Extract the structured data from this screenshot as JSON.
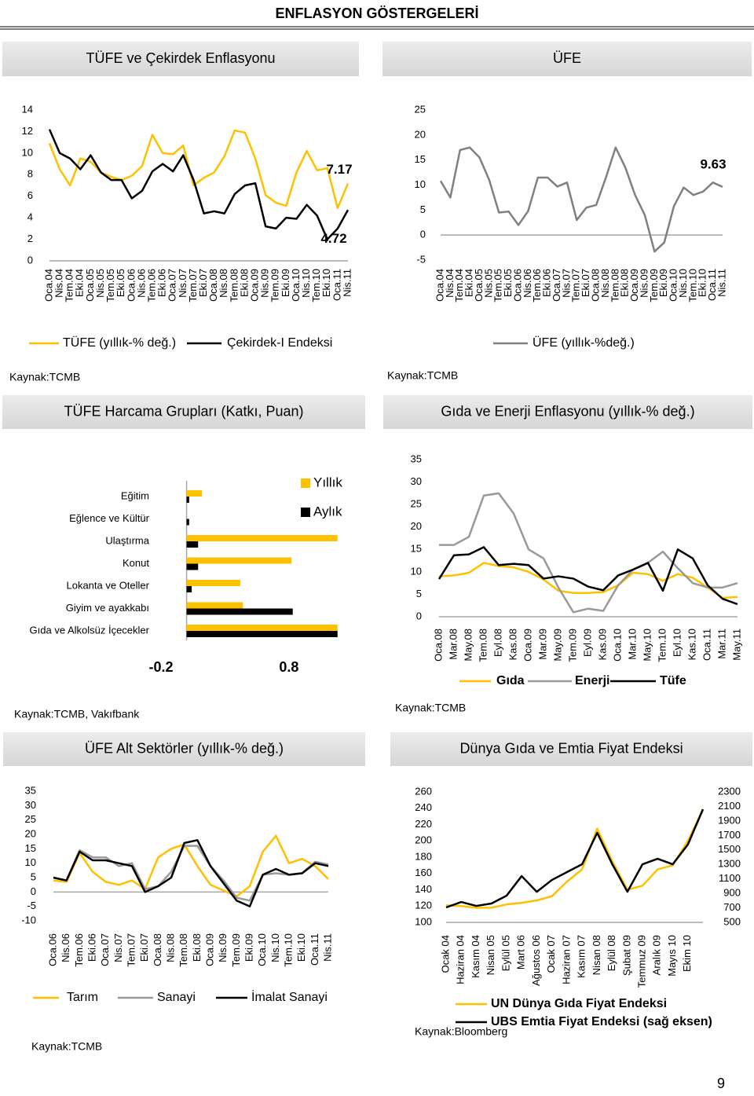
{
  "header": {
    "title": "ENFLASYON GÖSTERGELERİ"
  },
  "page_number": "9",
  "chart_data": [
    {
      "type": "line",
      "title": "TÜFE ve Çekirdek Enflasyonu",
      "source": "Kaynak:TCMB",
      "end_labels": true,
      "categories": [
        "Oca.04",
        "Nis.04",
        "Tem.04",
        "Eki.04",
        "Oca.05",
        "Nis.05",
        "Tem.05",
        "Eki.05",
        "Oca.06",
        "Nis.06",
        "Tem.06",
        "Eki.06",
        "Oca.07",
        "Nis.07",
        "Tem.07",
        "Eki.07",
        "Oca.08",
        "Nis.08",
        "Tem.08",
        "Eki.08",
        "Oca.09",
        "Nis.09",
        "Tem.09",
        "Eki.09",
        "Oca.10",
        "Nis.10",
        "Tem.10",
        "Eki.10",
        "Oca.11",
        "Nis.11"
      ],
      "series": [
        {
          "name": "TÜFE (yıllık-% değ.)",
          "color": "#FFC000",
          "values": [
            10.9,
            8.5,
            7.0,
            9.5,
            9.2,
            8.2,
            7.8,
            7.5,
            7.9,
            8.8,
            11.7,
            10.0,
            9.9,
            10.7,
            7.0,
            7.7,
            8.2,
            9.7,
            12.1,
            11.9,
            9.5,
            6.1,
            5.4,
            5.1,
            8.2,
            10.2,
            8.4,
            8.6,
            4.9,
            7.17
          ]
        },
        {
          "name": "Çekirdek-I Endeksi",
          "color": "#000000",
          "values": [
            12.2,
            10.0,
            9.5,
            8.5,
            9.8,
            8.2,
            7.5,
            7.5,
            5.8,
            6.5,
            8.3,
            9.0,
            8.3,
            9.8,
            7.5,
            4.4,
            4.6,
            4.4,
            6.2,
            7.0,
            7.2,
            3.2,
            3.0,
            4.0,
            3.9,
            5.2,
            4.2,
            2.0,
            3.0,
            4.72
          ]
        }
      ],
      "ylim": [
        0,
        14
      ],
      "yticks": [
        0,
        2,
        4,
        6,
        8,
        10,
        12,
        14
      ]
    },
    {
      "type": "line",
      "title": "ÜFE",
      "source": "Kaynak:TCMB",
      "end_labels": true,
      "categories": [
        "Oca.04",
        "Nis.04",
        "Tem.04",
        "Eki.04",
        "Oca.05",
        "Nis.05",
        "Tem.05",
        "Eki.05",
        "Oca.06",
        "Nis.06",
        "Tem.06",
        "Eki.06",
        "Oca.07",
        "Nis.07",
        "Tem.07",
        "Eki.07",
        "Oca.08",
        "Nis.08",
        "Tem.08",
        "Eki.08",
        "Oca.09",
        "Nis.09",
        "Tem.09",
        "Eki.09",
        "Oca.10",
        "Nis.10",
        "Tem.10",
        "Eki.10",
        "Oca.11",
        "Nis.11"
      ],
      "series": [
        {
          "name": "ÜFE (yıllık-%değ.)",
          "color": "#808080",
          "values": [
            10.8,
            7.5,
            17.0,
            17.5,
            15.5,
            11.0,
            4.5,
            4.7,
            2.0,
            4.8,
            11.5,
            11.5,
            9.7,
            10.5,
            3.0,
            5.5,
            6.0,
            11.5,
            17.5,
            13.5,
            8.0,
            4.0,
            -3.3,
            -1.5,
            5.8,
            9.5,
            8.0,
            8.7,
            10.5,
            9.63
          ]
        }
      ],
      "ylim": [
        -5,
        25
      ],
      "yticks": [
        -5,
        0,
        5,
        10,
        15,
        20,
        25
      ]
    },
    {
      "type": "bar",
      "orientation": "horizontal",
      "title": "TÜFE Harcama Grupları (Katkı, Puan)",
      "source": "Kaynak:TCMB, Vakıfbank",
      "categories": [
        "Eğitim",
        "Eğlence ve Kültür",
        "Ulaştırma",
        "Konut",
        "Lokanta ve Oteller",
        "Giyim ve ayakkabı",
        "Gıda ve Alkolsüz İçecekler"
      ],
      "series": [
        {
          "name": "Yıllık",
          "color": "#FFC000",
          "values": [
            0.12,
            0.0,
            1.18,
            0.82,
            0.42,
            0.44,
            1.18
          ]
        },
        {
          "name": "Aylık",
          "color": "#000000",
          "values": [
            0.02,
            0.02,
            0.09,
            0.09,
            0.04,
            0.83,
            1.18
          ]
        }
      ],
      "xlim": [
        -0.2,
        1.2
      ],
      "xticks": [
        -0.2,
        0.8
      ]
    },
    {
      "type": "line",
      "title": "Gıda ve Enerji Enflasyonu (yıllık-% değ.)",
      "source": "Kaynak:TCMB",
      "categories": [
        "Oca.08",
        "Mar.08",
        "May.08",
        "Tem.08",
        "Eyl.08",
        "Kas.08",
        "Oca.09",
        "Mar.09",
        "May.09",
        "Tem.09",
        "Eyl.09",
        "Kas.09",
        "Oca.10",
        "Mar.10",
        "May.10",
        "Tem.10",
        "Eyl.10",
        "Kas.10",
        "Oca.11",
        "Mar.11",
        "May.11"
      ],
      "series": [
        {
          "name": "Gıda",
          "color": "#FFC000",
          "values": [
            9,
            9.2,
            9.8,
            12,
            11.3,
            11,
            10,
            8.3,
            5.8,
            5.3,
            5.3,
            5.5,
            7,
            9.8,
            9.5,
            8,
            9.5,
            8.7,
            6.5,
            4.2,
            4.4
          ]
        },
        {
          "name": "Enerji",
          "color": "#999999",
          "values": [
            16,
            16,
            17.8,
            27,
            27.5,
            23,
            15,
            13,
            6.5,
            1,
            1.8,
            1.3,
            7,
            10.5,
            12,
            14.5,
            10.8,
            7.5,
            6.5,
            6.5,
            7.5
          ]
        },
        {
          "name": "Tüfe",
          "color": "#000000",
          "values": [
            8.4,
            13.7,
            13.9,
            15.5,
            11.5,
            11.8,
            11.5,
            8.5,
            9,
            8.5,
            6.7,
            5.9,
            9.2,
            10.5,
            12,
            5.8,
            15,
            13,
            7,
            4,
            2.8
          ]
        }
      ],
      "ylim": [
        0,
        35
      ],
      "yticks": [
        0,
        5,
        10,
        15,
        20,
        25,
        30,
        35
      ]
    },
    {
      "type": "line",
      "title": "ÜFE Alt Sektörler (yıllık-% değ.)",
      "source": "Kaynak:TCMB",
      "categories": [
        "Oca.06",
        "Nis.06",
        "Tem.06",
        "Eki.06",
        "Oca.07",
        "Nis.07",
        "Tem.07",
        "Eki.07",
        "Oca.08",
        "Nis.08",
        "Tem.08",
        "Eki.08",
        "Oca.09",
        "Nis.09",
        "Tem.09",
        "Eki.09",
        "Oca.10",
        "Nis.10",
        "Tem.10",
        "Eki.10",
        "Oca.11",
        "Nis.11"
      ],
      "series": [
        {
          "name": "Tarım",
          "color": "#FFC000",
          "values": [
            4,
            3.5,
            13.5,
            7,
            3.5,
            2.5,
            4,
            1,
            12,
            15,
            16.5,
            9,
            2.5,
            0.5,
            -1.5,
            2,
            14,
            19.5,
            10,
            11.5,
            9,
            4.5
          ]
        },
        {
          "name": "Sanayi",
          "color": "#999999",
          "values": [
            5,
            4,
            14.5,
            12,
            12,
            9,
            10,
            1,
            2,
            7,
            16,
            16,
            9,
            4,
            -2,
            -3,
            6,
            6.5,
            6,
            6.5,
            10.5,
            9.5
          ]
        },
        {
          "name": "İmalat Sanayi",
          "color": "#000000",
          "values": [
            5,
            4,
            14,
            11,
            11,
            10,
            9,
            0,
            2,
            5,
            17,
            18,
            9,
            3,
            -3,
            -5,
            6,
            8,
            6,
            6.5,
            10,
            9
          ]
        }
      ],
      "ylim": [
        -10,
        35
      ],
      "yticks": [
        -10,
        -5,
        0,
        5,
        10,
        15,
        20,
        25,
        30,
        35
      ]
    },
    {
      "type": "line",
      "title": "Dünya Gıda ve Emtia Fiyat Endeksi",
      "source": "Kaynak:Bloomberg",
      "categories": [
        "Ocak 04",
        "Haziran 04",
        "Kasım 04",
        "Nisan 05",
        "Eylül 05",
        "Mart 06",
        "Ağustos 06",
        "Ocak 07",
        "Haziran 07",
        "Kasım 07",
        "Nisan 08",
        "Eylül 08",
        "Şubat 09",
        "Temmuz 09",
        "Aralık 09",
        "Mayıs 10",
        "Ekim 10",
        null
      ],
      "series": [
        {
          "name": "UN Dünya Gıda Fiyat Endeksi",
          "color": "#FFC000",
          "values": [
            121,
            120,
            118,
            118,
            122,
            124,
            127,
            132,
            150,
            165,
            215,
            175,
            140,
            145,
            165,
            170,
            200,
            238
          ]
        },
        {
          "name": "UBS Emtia Fiyat Endeksi (sağ eksen)",
          "color": "#000000",
          "axis": "y2",
          "values": [
            706,
            781,
            727,
            760,
            868,
            1139,
            922,
            1085,
            1194,
            1302,
            1736,
            1302,
            922,
            1302,
            1378,
            1302,
            1573,
            2061
          ]
        }
      ],
      "ylim": [
        100,
        260
      ],
      "yticks": [
        100,
        120,
        140,
        160,
        180,
        200,
        220,
        240,
        260
      ],
      "y2lim": [
        500,
        2300
      ],
      "y2ticks": [
        500,
        700,
        900,
        1100,
        1300,
        1500,
        1700,
        1900,
        2100,
        2300
      ]
    }
  ]
}
